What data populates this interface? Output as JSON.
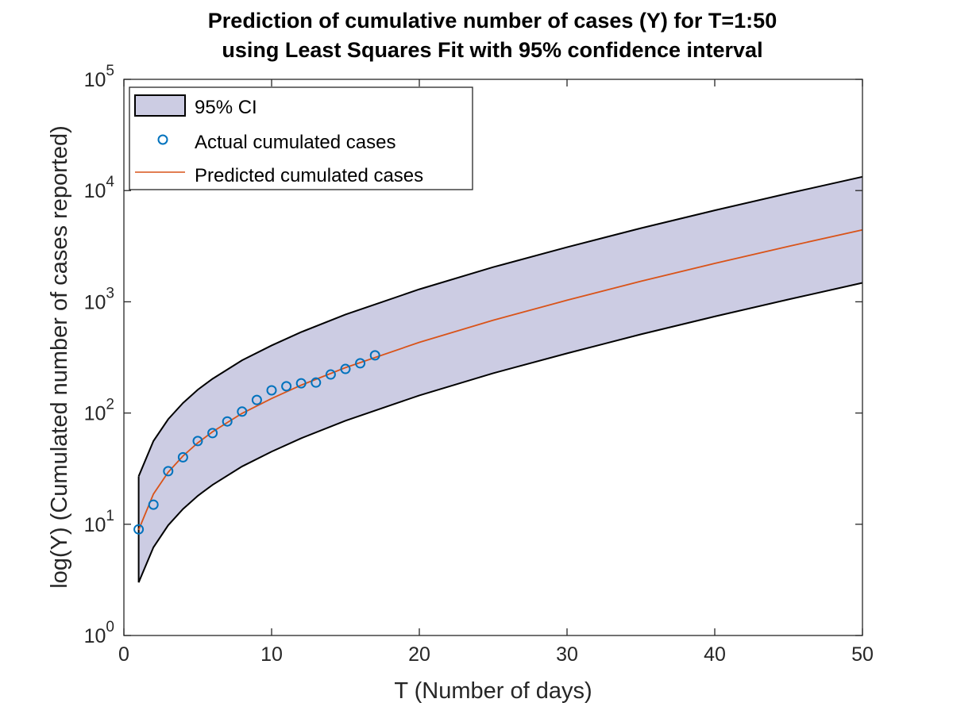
{
  "chart_data": {
    "type": "line",
    "title": [
      "Prediction of cumulative number of cases (Y) for T=1:50",
      "using Least Squares Fit with 95% confidence interval"
    ],
    "xlabel": "T (Number of days)",
    "ylabel": "log(Y) (Cumulated number of cases reported)",
    "xlim": [
      0,
      50
    ],
    "ylim": [
      1,
      100000
    ],
    "yscale": "log",
    "xticks": [
      0,
      10,
      20,
      30,
      40,
      50
    ],
    "xtick_labels": [
      "0",
      "10",
      "20",
      "30",
      "40",
      "50"
    ],
    "yticks": [
      1,
      10,
      100,
      1000,
      10000,
      100000
    ],
    "ytick_labels": [
      {
        "base": "10",
        "exp": "0"
      },
      {
        "base": "10",
        "exp": "1"
      },
      {
        "base": "10",
        "exp": "2"
      },
      {
        "base": "10",
        "exp": "3"
      },
      {
        "base": "10",
        "exp": "4"
      },
      {
        "base": "10",
        "exp": "5"
      }
    ],
    "grid": false,
    "legend_position": "top-left",
    "colors": {
      "ci_fill": "#cccce3",
      "ci_edge": "#000000",
      "actual": "#0072bd",
      "predicted": "#d95319"
    },
    "ci": {
      "name": "95% CI",
      "x": [
        1,
        2,
        3,
        4,
        5,
        6,
        8,
        10,
        12,
        15,
        20,
        25,
        30,
        35,
        40,
        45,
        50
      ],
      "upper": [
        27,
        56,
        88,
        123,
        162,
        203,
        298,
        405,
        534,
        768,
        1296,
        2049,
        3099,
        4590,
        6639,
        9456,
        13300
      ],
      "lower": [
        3.0,
        6.2,
        9.8,
        13.7,
        18,
        22.6,
        33.1,
        45,
        59.3,
        85.3,
        144,
        228,
        344,
        510,
        738,
        1051,
        1480
      ]
    },
    "series": [
      {
        "name": "Actual cumulated cases",
        "type": "scatter",
        "x": [
          1,
          2,
          3,
          4,
          5,
          6,
          7,
          8,
          9,
          10,
          11,
          12,
          13,
          14,
          15,
          16,
          17
        ],
        "y": [
          9,
          15,
          30,
          40,
          56,
          66,
          84,
          103,
          131,
          160,
          174,
          185,
          188,
          222,
          249,
          280,
          330
        ]
      },
      {
        "name": "Predicted cumulated cases",
        "type": "line",
        "x": [
          1,
          2,
          3,
          4,
          5,
          6,
          8,
          10,
          12,
          15,
          20,
          25,
          30,
          35,
          40,
          45,
          50
        ],
        "y": [
          8.9,
          18.7,
          29.4,
          41.1,
          53.9,
          67.8,
          99.3,
          135,
          178,
          256,
          432,
          683,
          1033,
          1530,
          2213,
          3152,
          4436
        ]
      }
    ]
  }
}
